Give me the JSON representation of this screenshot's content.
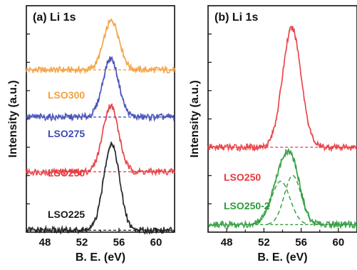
{
  "chart_data": [
    {
      "type": "line",
      "panel_label": "(a) Li 1s",
      "xlabel": "B. E. (eV)",
      "ylabel": "Intensity (a.u.)",
      "xlim": [
        46,
        62
      ],
      "xticks": [
        "48",
        "52",
        "56",
        "60"
      ],
      "x_reversed": false,
      "series": [
        {
          "name": "LSO300",
          "color": "#f5a03c",
          "baseline": 8.6,
          "peaks": [
            {
              "center": 55.2,
              "height": 2.6,
              "width": 0.85
            }
          ]
        },
        {
          "name": "LSO275",
          "color": "#3d49b5",
          "baseline": 6.1,
          "peaks": [
            {
              "center": 55.1,
              "height": 3.1,
              "width": 0.85
            }
          ]
        },
        {
          "name": "LSO250",
          "color": "#e8383f",
          "baseline": 3.2,
          "peaks": [
            {
              "center": 55.1,
              "height": 3.5,
              "width": 0.85
            }
          ]
        },
        {
          "name": "LSO225",
          "color": "#1a1a1a",
          "baseline": 0.1,
          "peaks": [
            {
              "center": 55.2,
              "height": 4.6,
              "width": 0.85
            }
          ]
        }
      ]
    },
    {
      "type": "line",
      "panel_label": "(b) Li 1s",
      "xlabel": "B. E. (eV)",
      "ylabel": "Intensity (a.u.)",
      "xlim": [
        46,
        62
      ],
      "xticks": [
        "48",
        "52",
        "56",
        "60"
      ],
      "x_reversed": false,
      "series": [
        {
          "name": "LSO250",
          "color": "#e8383f",
          "baseline": 4.5,
          "peaks": [
            {
              "center": 55.0,
              "height": 6.3,
              "width": 1.0
            }
          ]
        },
        {
          "name": "LSO250-2",
          "color": "#2e9b3c",
          "baseline": 0.4,
          "peaks": [
            {
              "center": 53.8,
              "height": 2.3,
              "width": 1.0
            },
            {
              "center": 55.1,
              "height": 2.6,
              "width": 0.9
            }
          ]
        }
      ]
    }
  ]
}
